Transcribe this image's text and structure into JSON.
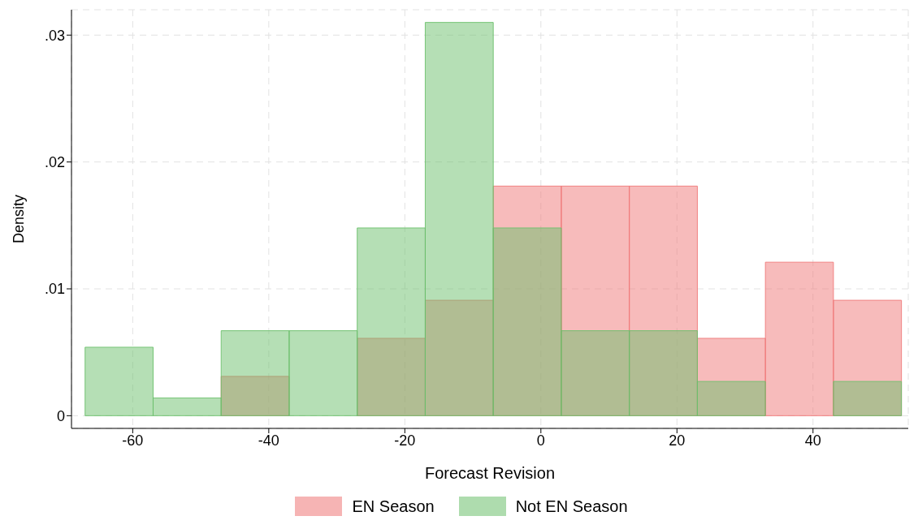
{
  "chart_data": {
    "type": "histogram",
    "xlabel": "Forecast Revision",
    "ylabel": "Density",
    "bins": [
      -67,
      -57,
      -47,
      -37,
      -27,
      -17,
      -7,
      3,
      13,
      23,
      33,
      43,
      53
    ],
    "series": [
      {
        "name": "EN Season",
        "color": "#f07878",
        "values": [
          0,
          0,
          0.0031,
          0,
          0.0061,
          0.0091,
          0.0181,
          0.0181,
          0.0181,
          0.0061,
          0.0121,
          0.0091
        ]
      },
      {
        "name": "Not EN Season",
        "color": "#6cc06c",
        "values": [
          0.0054,
          0.0014,
          0.0067,
          0.0067,
          0.0148,
          0.031,
          0.0148,
          0.0067,
          0.0067,
          0.0027,
          0,
          0.0027
        ]
      }
    ],
    "xlim": [
      -69,
      54
    ],
    "xticks": [
      -60,
      -40,
      -20,
      0,
      20,
      40
    ],
    "ylim": [
      -0.001,
      0.032
    ],
    "yticks": [
      0,
      {
        "value": 0.01,
        "label": ".01"
      },
      {
        "value": 0.02,
        "label": ".02"
      },
      {
        "value": 0.03,
        "label": ".03"
      }
    ],
    "grid": true,
    "legend": "bottom"
  }
}
